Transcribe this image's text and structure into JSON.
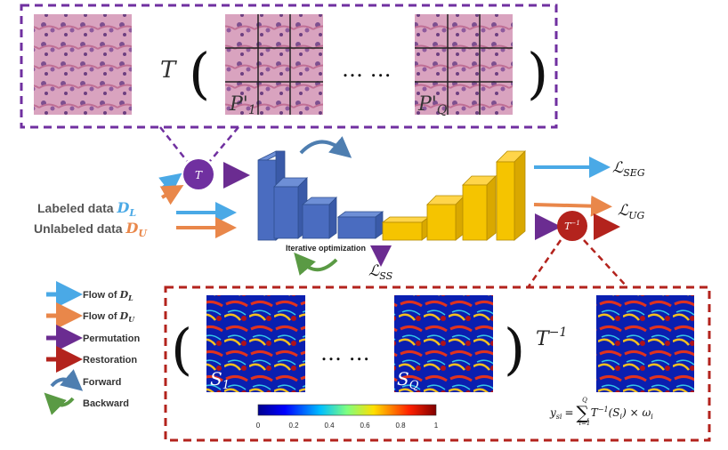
{
  "top_panel": {
    "operator": "T",
    "open_paren": "(",
    "patch_first": {
      "symbol": "P'",
      "sub": "1"
    },
    "ellipsis": "… …",
    "patch_last": {
      "symbol": "P'",
      "sub": "Q"
    },
    "close_paren": ")"
  },
  "nodes": {
    "permute": "T",
    "restore": {
      "symbol": "T",
      "sup": "−1"
    }
  },
  "inputs": {
    "labeled": {
      "text": "Labeled data",
      "symbol": "D",
      "sub": "L"
    },
    "unlabeled": {
      "text": "Unlabeled data",
      "symbol": "D",
      "sub": "U"
    }
  },
  "network": {
    "caption": "Iterative optimization"
  },
  "losses": {
    "seg": {
      "symbol": "ℒ",
      "sub": "SEG"
    },
    "ug": {
      "symbol": "ℒ",
      "sub": "UG"
    },
    "ss": {
      "symbol": "ℒ",
      "sub": "SS"
    }
  },
  "legend": [
    {
      "text": "Flow of",
      "symbol": "D",
      "sub": "L"
    },
    {
      "text": "Flow of",
      "symbol": "D",
      "sub": "U"
    },
    {
      "text": "Permutation"
    },
    {
      "text": "Restoration"
    },
    {
      "text": "Forward"
    },
    {
      "text": "Backward"
    }
  ],
  "bottom_panel": {
    "open_paren": "(",
    "map_first": {
      "symbol": "S",
      "sub": "1"
    },
    "ellipsis": "… …",
    "map_last": {
      "symbol": "S",
      "sub": "Q"
    },
    "close_paren": ")",
    "operator": {
      "symbol": "T",
      "sup": "−1"
    },
    "colorbar_ticks": [
      "0",
      "0.2",
      "0.4",
      "0.6",
      "0.8",
      "1"
    ],
    "formula": {
      "lhs": "y",
      "lhs_sub": "si",
      "eq": "=",
      "sum": "∑",
      "lower": "i=1",
      "upper": "Q",
      "term": "T",
      "term_sup": "−1",
      "arg": "(S",
      "arg_sub": "i",
      "rest": ") × ω",
      "rest_sub": "i"
    }
  }
}
